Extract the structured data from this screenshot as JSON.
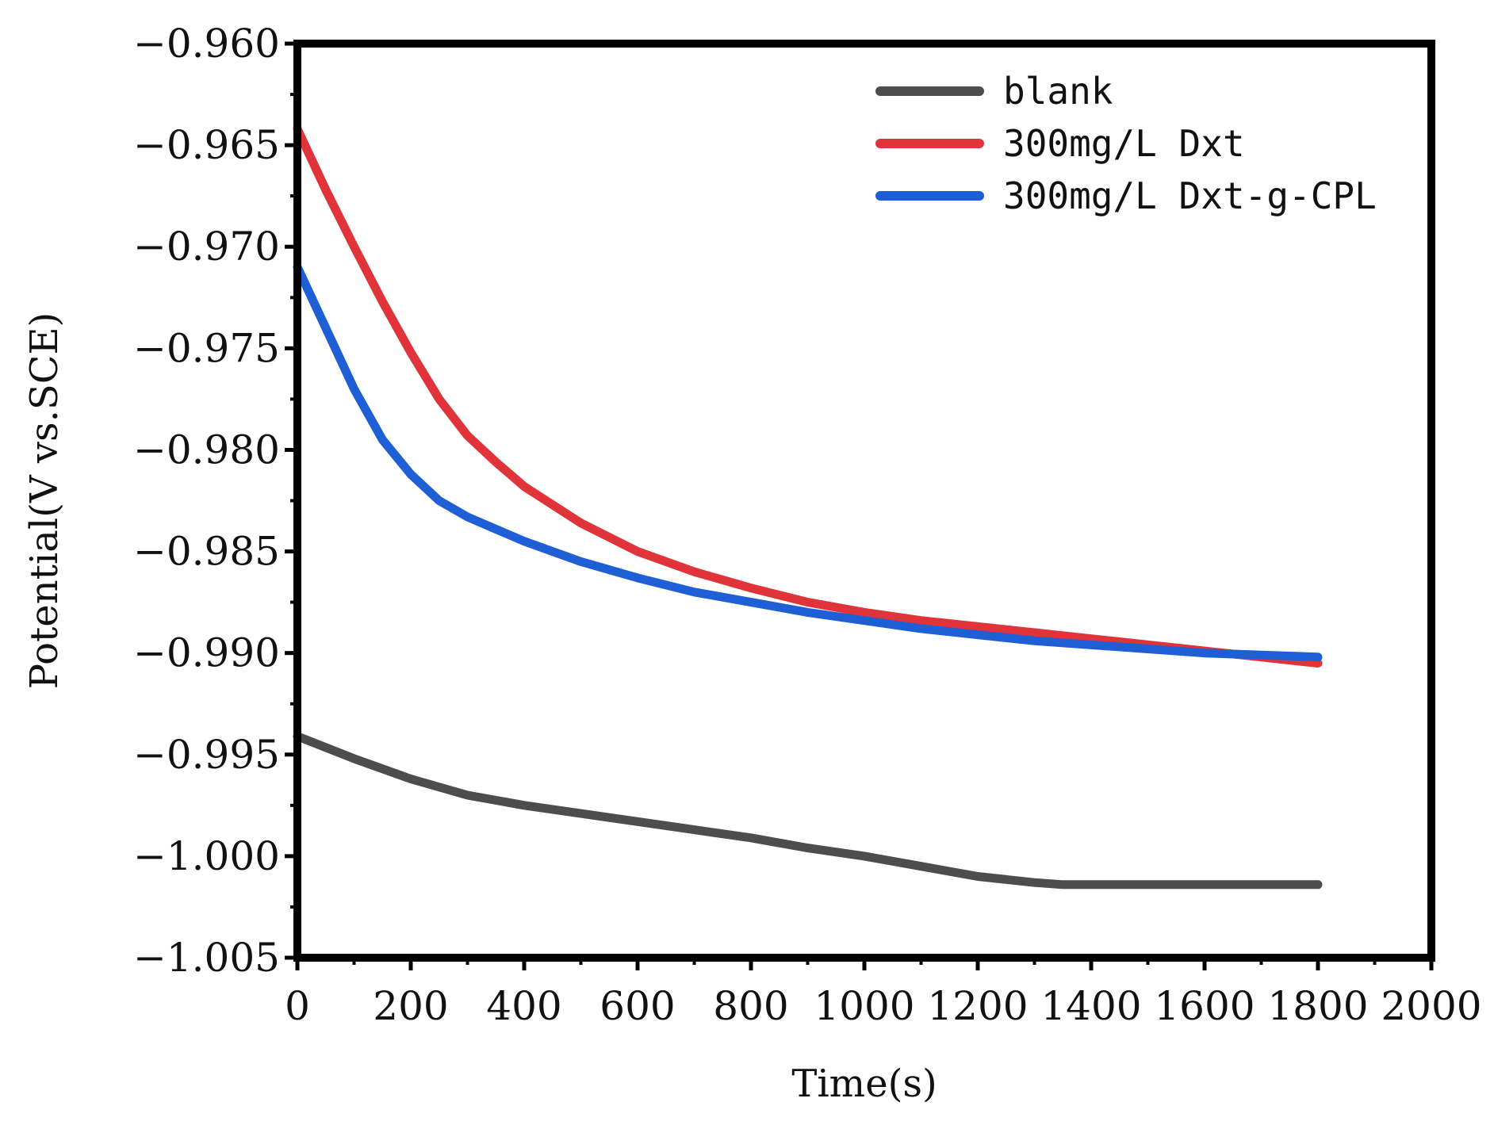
{
  "chart_data": {
    "type": "line",
    "title": "",
    "xlabel": "Time(s)",
    "ylabel": "Potential(V vs.SCE)",
    "xlim": [
      0,
      2000
    ],
    "ylim": [
      -1.005,
      -0.96
    ],
    "grid": false,
    "legend_position": "top-right",
    "x_ticks": [
      {
        "value": 0,
        "label": "0"
      },
      {
        "value": 200,
        "label": "200"
      },
      {
        "value": 400,
        "label": "400"
      },
      {
        "value": 600,
        "label": "600"
      },
      {
        "value": 800,
        "label": "800"
      },
      {
        "value": 1000,
        "label": "1000"
      },
      {
        "value": 1200,
        "label": "1200"
      },
      {
        "value": 1400,
        "label": "1400"
      },
      {
        "value": 1600,
        "label": "1600"
      },
      {
        "value": 1800,
        "label": "1800"
      },
      {
        "value": 2000,
        "label": "2000"
      }
    ],
    "y_ticks": [
      {
        "value": -0.96,
        "label": "−0.960"
      },
      {
        "value": -0.965,
        "label": "−0.965"
      },
      {
        "value": -0.97,
        "label": "−0.970"
      },
      {
        "value": -0.975,
        "label": "−0.975"
      },
      {
        "value": -0.98,
        "label": "−0.980"
      },
      {
        "value": -0.985,
        "label": "−0.985"
      },
      {
        "value": -0.99,
        "label": "−0.990"
      },
      {
        "value": -0.995,
        "label": "−0.995"
      },
      {
        "value": -1.0,
        "label": "−1.000"
      },
      {
        "value": -1.005,
        "label": "−1.005"
      }
    ],
    "series": [
      {
        "name": "blank",
        "color": "#4d4d4d",
        "x": [
          0,
          100,
          200,
          300,
          400,
          500,
          600,
          700,
          800,
          900,
          1000,
          1100,
          1200,
          1300,
          1350,
          1400,
          1500,
          1600,
          1700,
          1800
        ],
        "y": [
          -0.9941,
          -0.9952,
          -0.9962,
          -0.997,
          -0.9975,
          -0.9979,
          -0.9983,
          -0.9987,
          -0.9991,
          -0.9996,
          -1.0,
          -1.0005,
          -1.001,
          -1.0013,
          -1.0014,
          -1.0014,
          -1.0014,
          -1.0014,
          -1.0014,
          -1.0014
        ]
      },
      {
        "name": "300mg/L Dxt",
        "color": "#e0343a",
        "x": [
          0,
          50,
          100,
          150,
          200,
          250,
          300,
          350,
          400,
          500,
          600,
          700,
          800,
          900,
          1000,
          1100,
          1200,
          1300,
          1400,
          1500,
          1600,
          1700,
          1800
        ],
        "y": [
          -0.9642,
          -0.9672,
          -0.97,
          -0.9727,
          -0.9752,
          -0.9775,
          -0.9793,
          -0.9806,
          -0.9818,
          -0.9836,
          -0.985,
          -0.986,
          -0.9868,
          -0.9875,
          -0.988,
          -0.9884,
          -0.9887,
          -0.989,
          -0.9893,
          -0.9896,
          -0.9899,
          -0.9902,
          -0.9905
        ]
      },
      {
        "name": "300mg/L Dxt-g-CPL",
        "color": "#1f5fd6",
        "x": [
          0,
          50,
          100,
          150,
          200,
          250,
          300,
          350,
          400,
          500,
          600,
          700,
          800,
          900,
          1000,
          1100,
          1200,
          1300,
          1400,
          1500,
          1600,
          1700,
          1800
        ],
        "y": [
          -0.971,
          -0.974,
          -0.977,
          -0.9795,
          -0.9812,
          -0.9825,
          -0.9833,
          -0.9839,
          -0.9845,
          -0.9855,
          -0.9863,
          -0.987,
          -0.9875,
          -0.988,
          -0.9884,
          -0.9888,
          -0.9891,
          -0.9894,
          -0.9896,
          -0.9898,
          -0.99,
          -0.9901,
          -0.9902
        ]
      }
    ]
  }
}
